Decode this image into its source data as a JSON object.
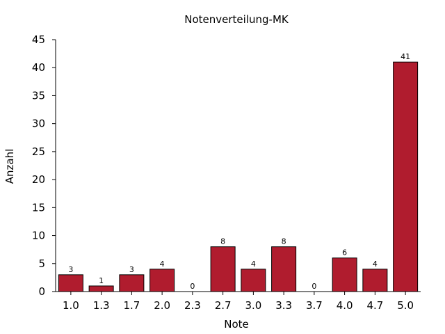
{
  "chart_data": {
    "type": "bar",
    "title": "Notenverteilung-MK",
    "xlabel": "Note",
    "ylabel": "Anzahl",
    "categories": [
      "1.0",
      "1.3",
      "1.7",
      "2.0",
      "2.3",
      "2.7",
      "3.0",
      "3.3",
      "3.7",
      "4.0",
      "4.7",
      "5.0"
    ],
    "values": [
      3,
      1,
      3,
      4,
      0,
      8,
      4,
      8,
      0,
      6,
      4,
      41
    ],
    "data_labels": [
      "3",
      "1",
      "3",
      "4",
      "0",
      "8",
      "4",
      "8",
      "0",
      "6",
      "4",
      "41"
    ],
    "ylim": [
      0,
      45
    ],
    "yticks": [
      0,
      5,
      10,
      15,
      20,
      25,
      30,
      35,
      40,
      45
    ],
    "ytick_labels": [
      "0",
      "5",
      "10",
      "15",
      "20",
      "25",
      "30",
      "35",
      "40",
      "45"
    ],
    "grid": false,
    "bar_color": "#b01c2e"
  }
}
